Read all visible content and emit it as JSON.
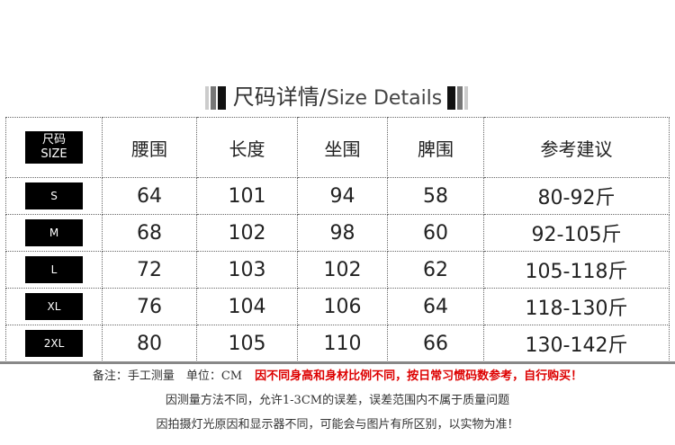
{
  "title": {
    "cn": "尺码详情/",
    "en": "Size Details"
  },
  "header": {
    "size_cn": "尺码",
    "size_en": "SIZE",
    "cols": [
      "腰围",
      "长度",
      "坐围",
      "脾围",
      "参考建议"
    ]
  },
  "rows": [
    {
      "size": "S",
      "values": [
        "64",
        "101",
        "94",
        "58",
        "80-92斤"
      ]
    },
    {
      "size": "M",
      "values": [
        "68",
        "102",
        "98",
        "60",
        "92-105斤"
      ]
    },
    {
      "size": "L",
      "values": [
        "72",
        "103",
        "102",
        "62",
        "105-118斤"
      ]
    },
    {
      "size": "XL",
      "values": [
        "76",
        "104",
        "106",
        "64",
        "118-130斤"
      ]
    },
    {
      "size": "2XL",
      "values": [
        "80",
        "105",
        "110",
        "66",
        "130-142斤"
      ]
    }
  ],
  "notes": {
    "line1": "备注：手工测量　单位：CM",
    "line1_red": "因不同身高和身材比例不同，按日常习惯码数参考，自行购买！",
    "line2": "因测量方法不同，允许1-3CM的误差，误差范围内不属于质量问题",
    "line3": "因拍摄灯光原因和显示器不同，可能会与图片有所区别，以实物为准！"
  },
  "colors": {
    "note_red": "#dd0000"
  }
}
